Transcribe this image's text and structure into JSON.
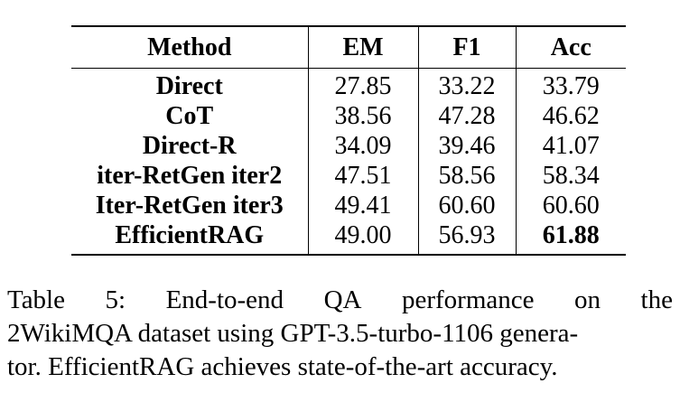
{
  "table": {
    "headers": [
      "Method",
      "EM",
      "F1",
      "Acc"
    ],
    "rows": [
      {
        "method": "Direct",
        "em": "27.85",
        "f1": "33.22",
        "acc": "33.79"
      },
      {
        "method": "CoT",
        "em": "38.56",
        "f1": "47.28",
        "acc": "46.62"
      },
      {
        "method": "Direct-R",
        "em": "34.09",
        "f1": "39.46",
        "acc": "41.07"
      },
      {
        "method": "iter-RetGen iter2",
        "em": "47.51",
        "f1": "58.56",
        "acc": "58.34"
      },
      {
        "method": "Iter-RetGen iter3",
        "em": "49.41",
        "f1": "60.60",
        "acc": "60.60"
      },
      {
        "method": "EfficientRAG",
        "em": "49.00",
        "f1": "56.93",
        "acc": "61.88"
      }
    ]
  },
  "caption": {
    "line1_words": [
      "Table",
      "5:",
      "End-to-end",
      "QA",
      "performance",
      "on",
      "the"
    ],
    "line2": "2WikiMQA dataset using GPT-3.5-turbo-1106 genera-",
    "line3": "tor. EfficientRAG achieves state-of-the-art accuracy."
  }
}
